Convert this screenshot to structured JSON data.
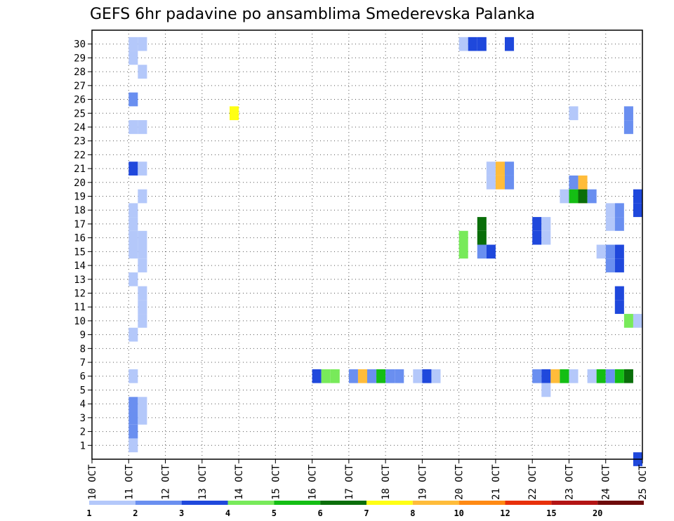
{
  "chart_data": {
    "type": "heatmap",
    "title": "GEFS 6hr padavine po ansamblima Smederevska Palanka",
    "x_tick_labels": [
      "10 OCT",
      "11 OCT",
      "12 OCT",
      "13 OCT",
      "14 OCT",
      "15 OCT",
      "16 OCT",
      "17 OCT",
      "18 OCT",
      "19 OCT",
      "20 OCT",
      "21 OCT",
      "22 OCT",
      "23 OCT",
      "24 OCT",
      "25 OCT"
    ],
    "x_range_days": [
      10,
      25
    ],
    "steps_per_day": 4,
    "y_tick_labels": [
      "1",
      "2",
      "3",
      "4",
      "5",
      "6",
      "7",
      "8",
      "9",
      "10",
      "11",
      "12",
      "13",
      "14",
      "15",
      "16",
      "17",
      "18",
      "19",
      "20",
      "21",
      "22",
      "23",
      "24",
      "25",
      "26",
      "27",
      "28",
      "29",
      "30"
    ],
    "y_range": [
      0,
      30
    ],
    "grid": true,
    "legend": {
      "position": "bottom",
      "labels": [
        "1",
        "2",
        "3",
        "4",
        "5",
        "6",
        "7",
        "8",
        "10",
        "12",
        "15",
        "20"
      ],
      "colors": [
        "#b4c8fa",
        "#6a8ff0",
        "#1f48dc",
        "#78ea5a",
        "#14be14",
        "#0a6e0a",
        "#ffff14",
        "#ffbc3a",
        "#ff8a14",
        "#e8300a",
        "#b41414",
        "#6e0a0a"
      ]
    },
    "cells": [
      [
        30,
        0,
        11.0,
        0
      ],
      [
        30,
        0,
        11.25,
        0
      ],
      [
        29,
        0,
        11.0,
        0
      ],
      [
        28,
        0,
        11.25,
        0
      ],
      [
        26,
        1,
        11.0,
        1
      ],
      [
        24,
        0,
        11.0,
        0
      ],
      [
        24,
        0,
        11.25,
        0
      ],
      [
        21,
        2,
        11.0,
        2
      ],
      [
        21,
        0,
        11.25,
        0
      ],
      [
        19,
        0,
        11.25,
        0
      ],
      [
        18,
        0,
        11.0,
        0
      ],
      [
        17,
        0,
        11.0,
        0
      ],
      [
        16,
        0,
        11.0,
        0
      ],
      [
        16,
        0,
        11.25,
        0
      ],
      [
        15,
        0,
        11.0,
        0
      ],
      [
        15,
        0,
        11.25,
        0
      ],
      [
        14,
        0,
        11.25,
        0
      ],
      [
        13,
        0,
        11.0,
        0
      ],
      [
        12,
        0,
        11.25,
        0
      ],
      [
        11,
        0,
        11.25,
        0
      ],
      [
        10,
        0,
        11.25,
        0
      ],
      [
        9,
        0,
        11.0,
        0
      ],
      [
        6,
        0,
        11.0,
        0
      ],
      [
        4,
        1,
        11.0,
        1
      ],
      [
        4,
        0,
        11.25,
        0
      ],
      [
        3,
        1,
        11.0,
        1
      ],
      [
        3,
        0,
        11.25,
        0
      ],
      [
        2,
        1,
        11.0,
        1
      ],
      [
        1,
        0,
        11.0,
        0
      ],
      [
        25,
        6,
        13.75,
        6
      ],
      [
        6,
        2,
        16.0,
        2
      ],
      [
        6,
        3,
        16.25,
        3
      ],
      [
        6,
        3,
        16.5,
        3
      ],
      [
        6,
        1,
        17.0,
        1
      ],
      [
        6,
        7,
        17.25,
        7
      ],
      [
        6,
        1,
        17.5,
        1
      ],
      [
        6,
        4,
        17.75,
        4
      ],
      [
        6,
        1,
        18.0,
        1
      ],
      [
        6,
        1,
        18.25,
        1
      ],
      [
        6,
        0,
        18.75,
        0
      ],
      [
        6,
        2,
        19.0,
        2
      ],
      [
        6,
        0,
        19.25,
        0
      ],
      [
        30,
        0,
        20.0,
        0
      ],
      [
        30,
        2,
        20.25,
        2
      ],
      [
        30,
        2,
        20.5,
        2
      ],
      [
        30,
        2,
        21.25,
        2
      ],
      [
        16,
        3,
        20.0,
        3
      ],
      [
        15,
        3,
        20.0,
        3
      ],
      [
        17,
        5,
        20.5,
        5
      ],
      [
        16,
        5,
        20.5,
        5
      ],
      [
        15,
        1,
        20.5,
        1
      ],
      [
        15,
        2,
        20.75,
        2
      ],
      [
        21,
        0,
        20.75,
        0
      ],
      [
        21,
        7,
        21.0,
        7
      ],
      [
        21,
        1,
        21.25,
        1
      ],
      [
        20,
        0,
        20.75,
        0
      ],
      [
        20,
        7,
        21.0,
        7
      ],
      [
        20,
        1,
        21.25,
        1
      ],
      [
        17,
        2,
        22.0,
        2
      ],
      [
        16,
        2,
        22.0,
        2
      ],
      [
        17,
        0,
        22.25,
        0
      ],
      [
        16,
        0,
        22.25,
        0
      ],
      [
        6,
        1,
        22.0,
        1
      ],
      [
        6,
        2,
        22.25,
        2
      ],
      [
        6,
        7,
        22.5,
        7
      ],
      [
        6,
        4,
        22.75,
        4
      ],
      [
        6,
        0,
        23.0,
        0
      ],
      [
        5,
        0,
        22.25,
        0
      ],
      [
        25,
        0,
        23.0,
        0
      ],
      [
        20,
        1,
        23.0,
        1
      ],
      [
        20,
        7,
        23.25,
        7
      ],
      [
        19,
        7,
        23.25,
        7
      ],
      [
        19,
        0,
        22.75,
        0
      ],
      [
        19,
        4,
        23.0,
        4
      ],
      [
        19,
        5,
        23.25,
        5
      ],
      [
        19,
        1,
        23.5,
        1
      ],
      [
        6,
        0,
        23.5,
        0
      ],
      [
        6,
        4,
        23.75,
        4
      ],
      [
        6,
        1,
        24.0,
        1
      ],
      [
        6,
        4,
        24.25,
        4
      ],
      [
        6,
        5,
        24.5,
        5
      ],
      [
        18,
        0,
        24.0,
        0
      ],
      [
        18,
        1,
        24.25,
        1
      ],
      [
        17,
        0,
        24.0,
        0
      ],
      [
        17,
        1,
        24.25,
        1
      ],
      [
        15,
        0,
        23.75,
        0
      ],
      [
        15,
        1,
        24.0,
        1
      ],
      [
        15,
        2,
        24.25,
        2
      ],
      [
        14,
        1,
        24.0,
        1
      ],
      [
        14,
        2,
        24.25,
        2
      ],
      [
        12,
        2,
        24.25,
        2
      ],
      [
        11,
        2,
        24.25,
        2
      ],
      [
        10,
        3,
        24.5,
        3
      ],
      [
        10,
        0,
        24.75,
        0
      ],
      [
        25,
        1,
        24.5,
        1
      ],
      [
        24,
        1,
        24.5,
        1
      ],
      [
        19,
        2,
        24.75,
        2
      ],
      [
        18,
        2,
        24.75,
        2
      ],
      [
        0,
        2,
        24.75,
        2
      ]
    ]
  }
}
